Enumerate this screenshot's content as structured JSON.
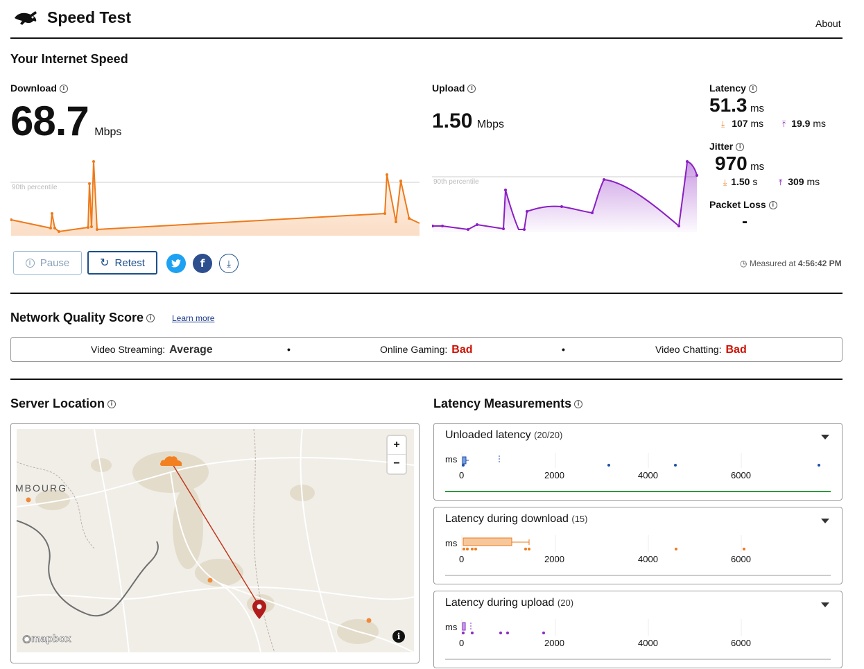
{
  "header": {
    "app_title": "Speed Test",
    "about_label": "About"
  },
  "speed": {
    "section_title": "Your Internet Speed",
    "download": {
      "label": "Download",
      "value": "68.7",
      "unit": "Mbps",
      "percentile_label": "90th percentile"
    },
    "upload": {
      "label": "Upload",
      "value": "1.50",
      "unit": "Mbps",
      "percentile_label": "90th percentile"
    },
    "latency": {
      "label": "Latency",
      "value": "51.3",
      "unit": "ms",
      "down_value": "107",
      "down_unit": "ms",
      "up_value": "19.9",
      "up_unit": "ms"
    },
    "jitter": {
      "label": "Jitter",
      "value": "970",
      "unit": "ms",
      "down_value": "1.50",
      "down_unit": "s",
      "up_value": "309",
      "up_unit": "ms"
    },
    "packet_loss": {
      "label": "Packet Loss",
      "value": "-"
    },
    "measured_prefix": "Measured at",
    "measured_time": "4:56:42 PM"
  },
  "controls": {
    "pause_label": "Pause",
    "retest_label": "Retest"
  },
  "quality": {
    "section_title": "Network Quality Score",
    "learn_more": "Learn more",
    "items": [
      {
        "label": "Video Streaming:",
        "value": "Average",
        "color": "#333333"
      },
      {
        "label": "Online Gaming:",
        "value": "Bad",
        "color": "#cc1100"
      },
      {
        "label": "Video Chatting:",
        "value": "Bad",
        "color": "#cc1100"
      }
    ]
  },
  "server": {
    "section_title": "Server Location",
    "map_label": "MBOURG",
    "attribution": "mapbox"
  },
  "latency_measurements": {
    "section_title": "Latency Measurements",
    "axis_unit": "ms",
    "ticks": [
      "0",
      "2000",
      "4000",
      "6000"
    ],
    "panels": [
      {
        "title": "Unloaded latency",
        "count": "(20/20)",
        "color": "#1f4fa8",
        "line_color": "#2e9a3c"
      },
      {
        "title": "Latency during download",
        "count": "(15)",
        "color": "#ee7a1a",
        "line_color": "#cccccc"
      },
      {
        "title": "Latency during upload",
        "count": "(20)",
        "color": "#8a2bc4",
        "line_color": "#cccccc"
      }
    ]
  },
  "colors": {
    "download": "#ee7a1a",
    "upload": "#8a1fc2",
    "accent": "#1b4f8a"
  }
}
